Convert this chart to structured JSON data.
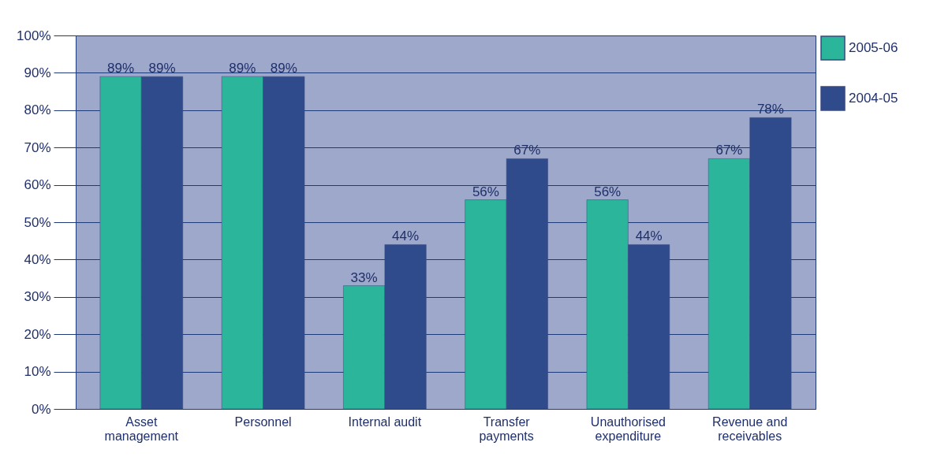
{
  "chart_data": {
    "type": "bar",
    "categories": [
      "Asset management",
      "Personnel",
      "Internal audit",
      "Transfer payments",
      "Unauthorised expenditure",
      "Revenue and receivables"
    ],
    "series": [
      {
        "name": "2005-06",
        "color": "#2bb59a",
        "values": [
          89,
          89,
          33,
          56,
          56,
          67
        ],
        "value_labels": [
          "89%",
          "89%",
          "33%",
          "56%",
          "56%",
          "67%"
        ]
      },
      {
        "name": "2004-05",
        "color": "#2f4b8c",
        "values": [
          89,
          89,
          44,
          67,
          44,
          78
        ],
        "value_labels": [
          "89%",
          "89%",
          "44%",
          "67%",
          "44%",
          "78%"
        ]
      }
    ],
    "ylim": [
      0,
      100
    ],
    "yticks": [
      {
        "value": 0,
        "label": "0%"
      },
      {
        "value": 10,
        "label": "10%"
      },
      {
        "value": 20,
        "label": "20%"
      },
      {
        "value": 30,
        "label": "30%"
      },
      {
        "value": 40,
        "label": "40%"
      },
      {
        "value": 50,
        "label": "50%"
      },
      {
        "value": 60,
        "label": "60%"
      },
      {
        "value": 70,
        "label": "70%"
      },
      {
        "value": 80,
        "label": "80%"
      },
      {
        "value": 90,
        "label": "90%"
      },
      {
        "value": 100,
        "label": "100%"
      }
    ],
    "grid": "y",
    "legend": "right"
  }
}
